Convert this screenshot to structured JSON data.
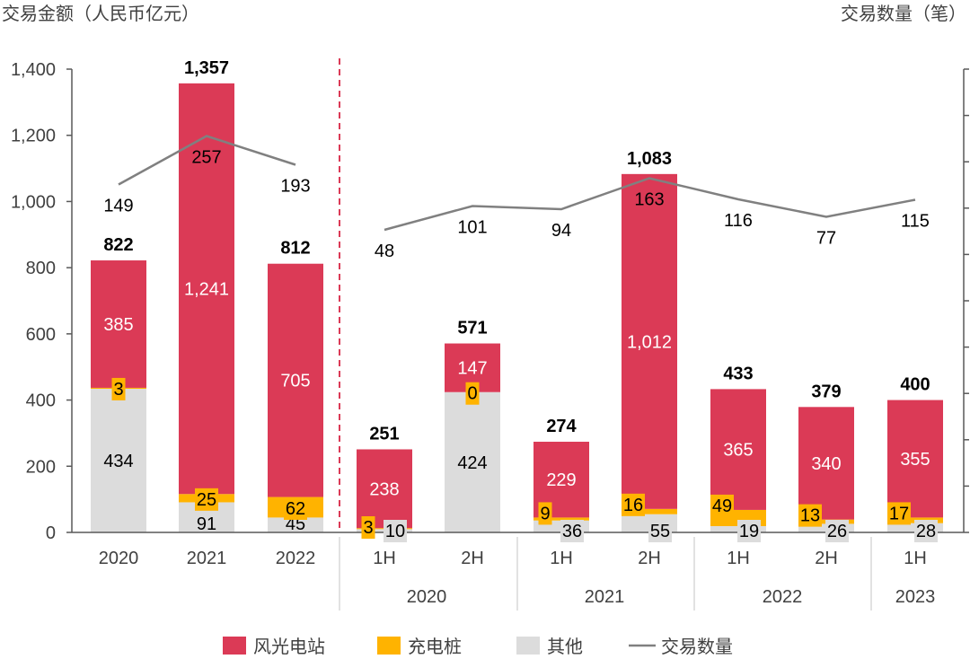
{
  "chart_data": {
    "type": "bar",
    "stacked": true,
    "left_axis_title": "交易金额（人民币亿元）",
    "right_axis_title": "交易数量（笔）",
    "ylim": [
      0,
      1400
    ],
    "yticks": [
      "0",
      "200",
      "400",
      "600",
      "800",
      "1,000",
      "1,200",
      "1,400"
    ],
    "ytick_values": [
      0,
      200,
      400,
      600,
      800,
      1000,
      1200,
      1400
    ],
    "grid": false,
    "legend_position": "bottom",
    "categories": [
      "2020",
      "2021",
      "2022",
      "1H",
      "2H",
      "1H",
      "2H",
      "1H",
      "2H",
      "1H"
    ],
    "groups": [
      {
        "label": "2020",
        "categories": [
          3,
          4
        ]
      },
      {
        "label": "2021",
        "categories": [
          5,
          6
        ]
      },
      {
        "label": "2022",
        "categories": [
          7,
          8
        ]
      },
      {
        "label": "2023",
        "categories": [
          9
        ]
      }
    ],
    "series": [
      {
        "name": "其他",
        "color": "#dcdcdc",
        "values": [
          434,
          91,
          45,
          10,
          424,
          36,
          55,
          19,
          26,
          28
        ]
      },
      {
        "name": "充电桩",
        "color": "#ffb300",
        "values": [
          3,
          25,
          62,
          3,
          0,
          9,
          16,
          49,
          13,
          17
        ]
      },
      {
        "name": "风光电站",
        "color": "#db3a56",
        "values": [
          385,
          1241,
          705,
          238,
          147,
          229,
          1012,
          365,
          340,
          355
        ]
      }
    ],
    "totals": [
      "822",
      "1,357",
      "812",
      "251",
      "571",
      "274",
      "1,083",
      "433",
      "379",
      "400"
    ],
    "value_labels": {
      "其他": [
        "434",
        "91",
        "45",
        "10",
        "424",
        "36",
        "55",
        "19",
        "26",
        "28"
      ],
      "充电桩": [
        "3",
        "25",
        "62",
        "3",
        "0",
        "9",
        "16",
        "49",
        "13",
        "17"
      ],
      "风光电站": [
        "385",
        "1,241",
        "705",
        "238",
        "147",
        "229",
        "1,012",
        "365",
        "340",
        "355"
      ]
    },
    "line_series": {
      "name": "交易数量",
      "color": "#808080",
      "axis": "right",
      "values": [
        149,
        257,
        193,
        48,
        101,
        94,
        163,
        116,
        77,
        115
      ]
    },
    "legend": [
      "风光电站",
      "充电桩",
      "其他",
      "交易数量"
    ]
  }
}
